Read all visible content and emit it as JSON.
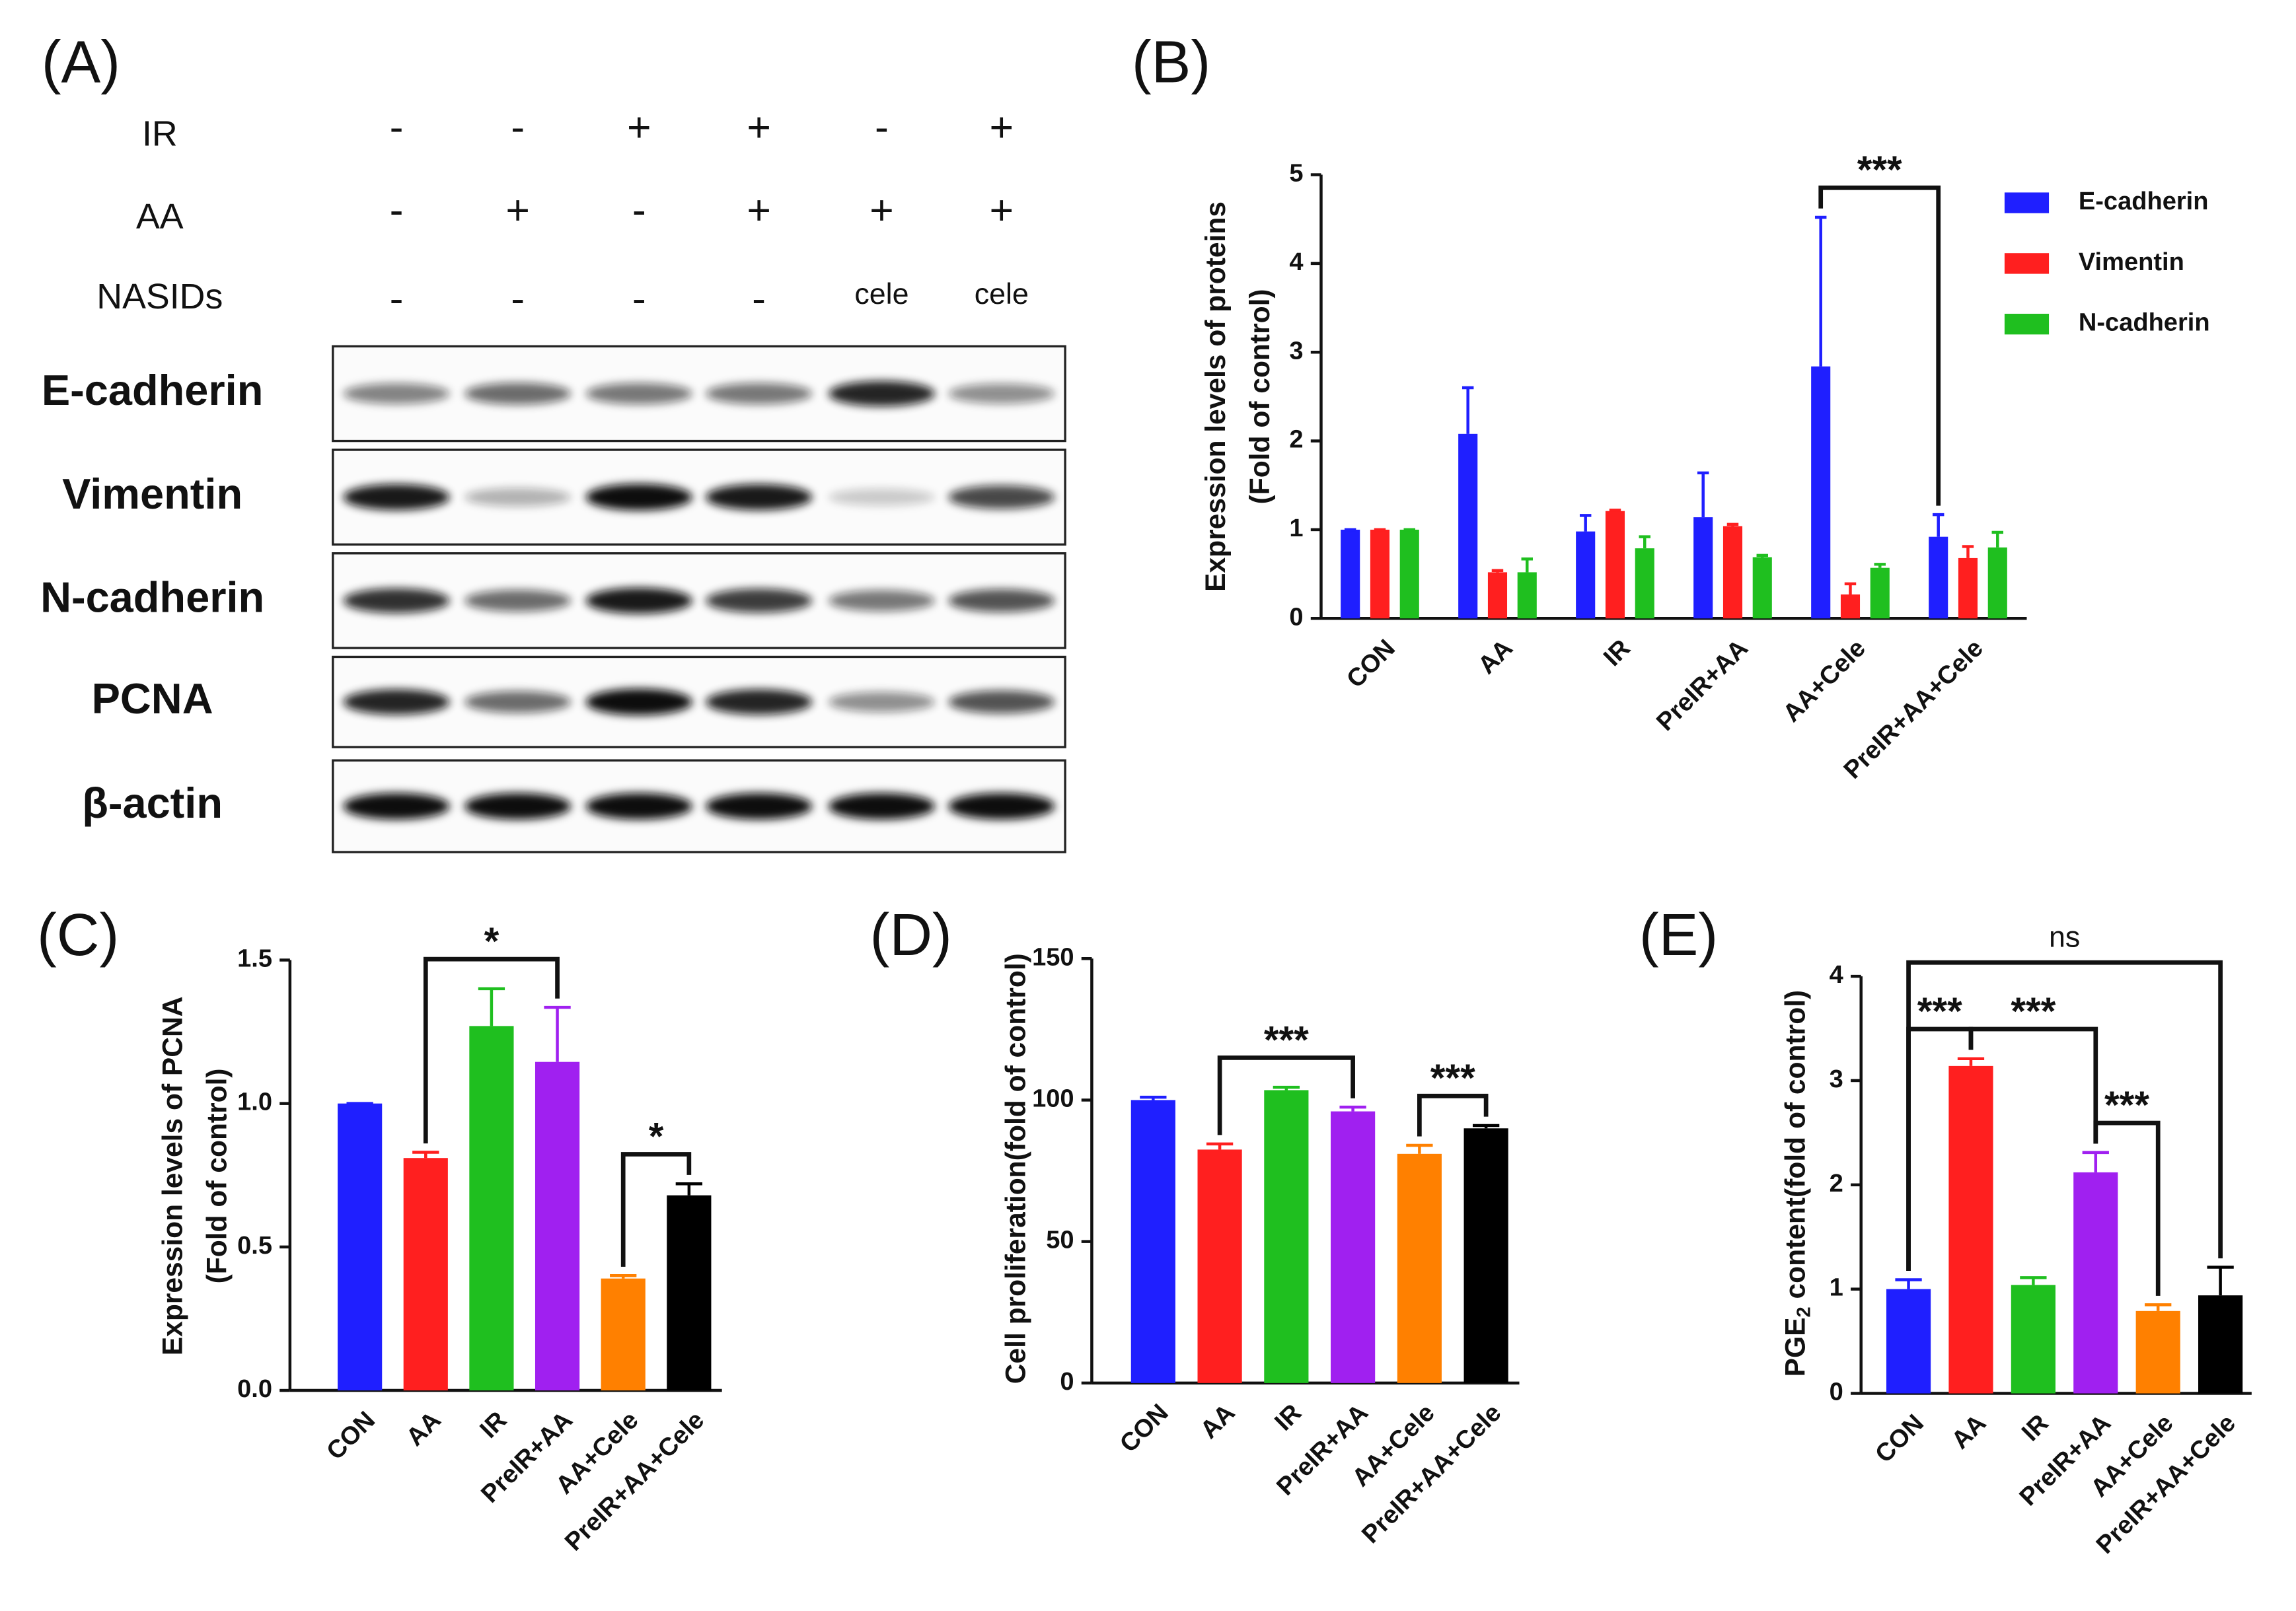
{
  "blot": {
    "panel": "(A)",
    "treatments": [
      {
        "name": "IR",
        "signs": [
          "-",
          "-",
          "+",
          "+",
          "-",
          "+"
        ]
      },
      {
        "name": "AA",
        "signs": [
          "-",
          "+",
          "-",
          "+",
          "+",
          "+"
        ]
      },
      {
        "name": "NASIDs",
        "signs": [
          "-",
          "-",
          "-",
          "-",
          "cele",
          "cele"
        ]
      }
    ],
    "proteins": [
      "E-cadherin",
      "Vimentin",
      "N-cadherin",
      "PCNA",
      "β-actin"
    ]
  },
  "chart_data": [
    {
      "type": "bar",
      "panel": "(B)",
      "ylabel": [
        "Expression levels of proteins",
        "(Fold of control)"
      ],
      "categories": [
        "CON",
        "AA",
        "IR",
        "PreIR+AA",
        "AA+Cele",
        "PreIR+AA+Cele"
      ],
      "series": [
        {
          "name": "E-cadherin",
          "color": "#1f1fff",
          "values": [
            1,
            2.08,
            0.98,
            1.14,
            2.84,
            0.92
          ],
          "errors": [
            0,
            0.52,
            0.18,
            0.5,
            1.68,
            0.25
          ]
        },
        {
          "name": "Vimentin",
          "color": "#ff1f1f",
          "values": [
            1,
            0.52,
            1.21,
            1.04,
            0.27,
            0.68
          ],
          "errors": [
            0,
            0.02,
            0.01,
            0.02,
            0.12,
            0.13
          ]
        },
        {
          "name": "N-cadherin",
          "color": "#1fbf1f",
          "values": [
            1,
            0.52,
            0.79,
            0.69,
            0.57,
            0.8
          ],
          "errors": [
            0,
            0.15,
            0.13,
            0.02,
            0.04,
            0.17
          ]
        }
      ],
      "ylim": [
        0,
        5
      ],
      "yticks": [
        0,
        1,
        2,
        3,
        4,
        5
      ],
      "legend": "upper right",
      "annotations": [
        {
          "text": "***",
          "between": [
            "AA+Cele",
            "PreIR+AA+Cele"
          ],
          "series": "E-cadherin"
        }
      ]
    },
    {
      "type": "bar",
      "panel": "(C)",
      "ylabel": [
        "Expression levels of PCNA",
        "(Fold of control)"
      ],
      "categories": [
        "CON",
        "AA",
        "IR",
        "PreIR+AA",
        "AA+Cele",
        "PreIR+AA+Cele"
      ],
      "values": [
        1.0,
        0.81,
        1.27,
        1.145,
        0.39,
        0.68
      ],
      "errors": [
        0,
        0.02,
        0.13,
        0.19,
        0.01,
        0.04
      ],
      "colors": [
        "#1f1fff",
        "#ff1f1f",
        "#1fbf1f",
        "#a020f0",
        "#ff8000",
        "#000000"
      ],
      "ylim": [
        0,
        1.5
      ],
      "yticks": [
        {
          "value": 0,
          "label": "0.0"
        },
        0.5,
        {
          "value": 1,
          "label": "1.0"
        },
        1.5
      ],
      "annotations": [
        {
          "text": "*",
          "between": [
            "AA",
            "PreIR+AA"
          ]
        },
        {
          "text": "*",
          "between": [
            "AA+Cele",
            "PreIR+AA+Cele"
          ]
        }
      ]
    },
    {
      "type": "bar",
      "panel": "(D)",
      "ylabel": [
        "Cell proliferation(fold of control)"
      ],
      "categories": [
        "CON",
        "AA",
        "IR",
        "PreIR+AA",
        "AA+Cele",
        "PreIR+AA+Cele"
      ],
      "values": [
        100,
        82.5,
        103.5,
        96,
        81,
        90
      ],
      "errors": [
        1,
        2,
        1,
        1.5,
        3,
        1
      ],
      "colors": [
        "#1f1fff",
        "#ff1f1f",
        "#1fbf1f",
        "#a020f0",
        "#ff8000",
        "#000000"
      ],
      "ylim": [
        0,
        150
      ],
      "yticks": [
        0,
        50,
        100,
        150
      ],
      "annotations": [
        {
          "text": "***",
          "between": [
            "AA",
            "PreIR+AA"
          ]
        },
        {
          "text": "***",
          "between": [
            "AA+Cele",
            "PreIR+AA+Cele"
          ]
        }
      ]
    },
    {
      "type": "bar",
      "panel": "(E)",
      "ylabel": {
        "text": "PGE",
        "subscript": "2",
        "rest": " content(fold of control)"
      },
      "categories": [
        "CON",
        "AA",
        "IR",
        "PreIR+AA",
        "AA+Cele",
        "PreIR+AA+Cele"
      ],
      "values": [
        1.0,
        3.14,
        1.04,
        2.12,
        0.79,
        0.94
      ],
      "errors": [
        0.09,
        0.07,
        0.07,
        0.19,
        0.06,
        0.27
      ],
      "colors": [
        "#1f1fff",
        "#ff1f1f",
        "#1fbf1f",
        "#a020f0",
        "#ff8000",
        "#000000"
      ],
      "ylim": [
        0,
        4
      ],
      "yticks": [
        0,
        1,
        2,
        3,
        4
      ],
      "annotations": [
        {
          "text": "***",
          "between": [
            "CON",
            "AA"
          ]
        },
        {
          "text": "***",
          "between": [
            "AA",
            "PreIR+AA"
          ]
        },
        {
          "text": "***",
          "between": [
            "PreIR+AA",
            "AA+Cele"
          ]
        },
        {
          "text": "ns",
          "between": [
            "CON",
            "PreIR+AA+Cele"
          ]
        }
      ]
    }
  ]
}
